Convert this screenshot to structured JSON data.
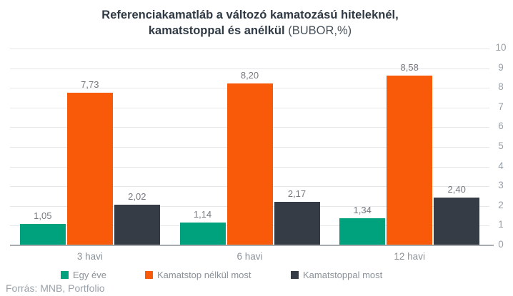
{
  "title": {
    "line1": "Referenciakamatláb a változó kamatozású hiteleknél,",
    "line2_bold": "kamatstoppal és anélkül",
    "line2_normal": "(BUBOR,%)"
  },
  "source": "Forrás: MNB, Portfolio",
  "colors": {
    "series_green": "#00a17d",
    "series_orange": "#f85a0a",
    "series_dark": "#353c46",
    "gridline": "#e5e7e9",
    "baseline": "#a8acb0",
    "title_text": "#2f3a44",
    "axis_text": "#989fa6"
  },
  "chart_data": {
    "type": "bar",
    "title": "Referenciakamatláb a változó kamatozású hiteleknél, kamatstoppal és anélkül (BUBOR,%)",
    "categories": [
      "3 havi",
      "6 havi",
      "12 havi"
    ],
    "series": [
      {
        "name": "Egy éve",
        "color": "#00a17d",
        "values": [
          1.05,
          1.14,
          1.34
        ]
      },
      {
        "name": "Kamatstop nélkül most",
        "color": "#f85a0a",
        "values": [
          7.73,
          8.2,
          8.58
        ]
      },
      {
        "name": "Kamatstoppal most",
        "color": "#353c46",
        "values": [
          2.02,
          2.17,
          2.4
        ]
      }
    ],
    "data_labels": [
      [
        "1,05",
        "7,73",
        "2,02"
      ],
      [
        "1,14",
        "8,20",
        "2,17"
      ],
      [
        "1,34",
        "8,58",
        "2,40"
      ]
    ],
    "xlabel": "",
    "ylabel": "",
    "ylim": [
      0,
      10
    ],
    "yticks": [
      0,
      1,
      2,
      3,
      4,
      5,
      6,
      7,
      8,
      9,
      10
    ],
    "axis_side": "right",
    "grid": true,
    "legend_position": "bottom"
  }
}
